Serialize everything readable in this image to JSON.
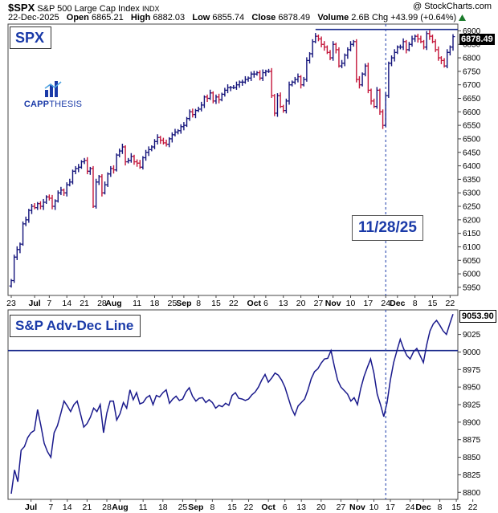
{
  "header": {
    "symbol": "$SPX",
    "name": "S&P 500 Large Cap Index",
    "exchange": "INDX",
    "date": "22-Dec-2025",
    "open_label": "Open",
    "open": "6865.21",
    "high_label": "High",
    "high": "6882.03",
    "low_label": "Low",
    "low": "6855.74",
    "close_label": "Close",
    "close": "6878.49",
    "volume_label": "Volume",
    "volume": "2.6B",
    "change": "Chg +43.99 (+0.64%)",
    "change_icon": "up-triangle-icon",
    "credit": "@ StockCharts.com"
  },
  "logo": {
    "text_bold": "CAPP",
    "text_thin": "THESIS",
    "icon": "bar-chart-logo-icon"
  },
  "colors": {
    "up": "#12127a",
    "down": "#c4163a",
    "line": "#1a1a8c",
    "accent": "#1a3aa8"
  },
  "chart_data": [
    {
      "type": "ohlc",
      "title": "SPX",
      "annotation": "11/28/25",
      "last_value": "6878.49",
      "y_ticks": [
        5950,
        6000,
        6050,
        6100,
        6150,
        6200,
        6250,
        6300,
        6350,
        6400,
        6450,
        6500,
        6550,
        6600,
        6650,
        6700,
        6750,
        6800,
        6850,
        6900
      ],
      "ylim": [
        5920,
        6925
      ],
      "horizontal_line": 6905,
      "vertical_marker_index": 128,
      "closes": [
        5975,
        6062,
        6090,
        6110,
        6185,
        6200,
        6235,
        6250,
        6245,
        6260,
        6250,
        6265,
        6285,
        6280,
        6250,
        6270,
        6300,
        6310,
        6300,
        6330,
        6340,
        6380,
        6390,
        6395,
        6415,
        6420,
        6380,
        6390,
        6250,
        6340,
        6360,
        6300,
        6330,
        6370,
        6390,
        6385,
        6440,
        6455,
        6470,
        6415,
        6420,
        6435,
        6415,
        6410,
        6395,
        6430,
        6450,
        6460,
        6470,
        6490,
        6505,
        6495,
        6485,
        6480,
        6500,
        6515,
        6525,
        6530,
        6545,
        6550,
        6575,
        6600,
        6590,
        6605,
        6610,
        6625,
        6655,
        6650,
        6670,
        6640,
        6655,
        6645,
        6665,
        6680,
        6690,
        6690,
        6690,
        6700,
        6710,
        6710,
        6720,
        6725,
        6740,
        6740,
        6745,
        6725,
        6745,
        6750,
        6750,
        6660,
        6595,
        6660,
        6620,
        6605,
        6640,
        6700,
        6710,
        6720,
        6730,
        6700,
        6720,
        6790,
        6815,
        6860,
        6880,
        6870,
        6850,
        6840,
        6820,
        6800,
        6850,
        6830,
        6770,
        6780,
        6810,
        6830,
        6850,
        6860,
        6720,
        6700,
        6740,
        6770,
        6680,
        6640,
        6620,
        6680,
        6600,
        6550,
        6660,
        6780,
        6800,
        6820,
        6840,
        6840,
        6860,
        6830,
        6850,
        6870,
        6880,
        6870,
        6860,
        6840,
        6890,
        6880,
        6860,
        6830,
        6800,
        6790,
        6770,
        6820,
        6840,
        6878.49
      ],
      "x_ticks": [
        {
          "label": "23",
          "index": 0,
          "bold": false
        },
        {
          "label": "Jul",
          "index": 8,
          "bold": true
        },
        {
          "label": "7",
          "index": 13,
          "bold": false
        },
        {
          "label": "14",
          "index": 19,
          "bold": false
        },
        {
          "label": "21",
          "index": 25,
          "bold": false
        },
        {
          "label": "28",
          "index": 31,
          "bold": false
        },
        {
          "label": "Aug",
          "index": 35,
          "bold": true
        },
        {
          "label": "11",
          "index": 43,
          "bold": false
        },
        {
          "label": "18",
          "index": 49,
          "bold": false
        },
        {
          "label": "25",
          "index": 55,
          "bold": false
        },
        {
          "label": "Sep",
          "index": 59,
          "bold": true
        },
        {
          "label": "8",
          "index": 64,
          "bold": false
        },
        {
          "label": "15",
          "index": 70,
          "bold": false
        },
        {
          "label": "22",
          "index": 76,
          "bold": false
        },
        {
          "label": "Oct",
          "index": 83,
          "bold": true
        },
        {
          "label": "6",
          "index": 87,
          "bold": false
        },
        {
          "label": "13",
          "index": 93,
          "bold": false
        },
        {
          "label": "20",
          "index": 99,
          "bold": false
        },
        {
          "label": "27",
          "index": 105,
          "bold": false
        },
        {
          "label": "Nov",
          "index": 110,
          "bold": true
        },
        {
          "label": "10",
          "index": 116,
          "bold": false
        },
        {
          "label": "17",
          "index": 122,
          "bold": false
        },
        {
          "label": "24",
          "index": 128,
          "bold": false
        },
        {
          "label": "Dec",
          "index": 132,
          "bold": true
        },
        {
          "label": "8",
          "index": 138,
          "bold": false
        },
        {
          "label": "15",
          "index": 144,
          "bold": false
        },
        {
          "label": "22",
          "index": 150,
          "bold": false
        }
      ]
    },
    {
      "type": "line",
      "title": "S&P Adv-Dec Line",
      "last_value": "9053.90",
      "y_ticks": [
        8800,
        8825,
        8850,
        8875,
        8900,
        8925,
        8950,
        8975,
        9000,
        9025
      ],
      "ylim": [
        8790,
        9060
      ],
      "horizontal_line": 9002,
      "values": [
        8798,
        8832,
        8815,
        8860,
        8865,
        8878,
        8885,
        8888,
        8918,
        8895,
        8870,
        8858,
        8850,
        8885,
        8895,
        8912,
        8930,
        8923,
        8915,
        8925,
        8930,
        8912,
        8893,
        8898,
        8907,
        8920,
        8915,
        8925,
        8885,
        8913,
        8930,
        8930,
        8903,
        8912,
        8928,
        8920,
        8946,
        8932,
        8942,
        8926,
        8928,
        8935,
        8938,
        8925,
        8938,
        8936,
        8942,
        8946,
        8927,
        8933,
        8937,
        8931,
        8933,
        8943,
        8949,
        8937,
        8930,
        8934,
        8935,
        8928,
        8932,
        8928,
        8920,
        8924,
        8922,
        8927,
        8924,
        8938,
        8942,
        8934,
        8933,
        8931,
        8933,
        8939,
        8943,
        8950,
        8960,
        8968,
        8957,
        8963,
        8970,
        8967,
        8960,
        8950,
        8935,
        8920,
        8910,
        8923,
        8928,
        8933,
        8946,
        8962,
        8972,
        8976,
        8984,
        8990,
        8991,
        9002,
        8980,
        8960,
        8950,
        8945,
        8940,
        8930,
        8935,
        8925,
        8948,
        8965,
        8978,
        8990,
        8970,
        8940,
        8925,
        8908,
        8928,
        8960,
        8985,
        9002,
        9018,
        9005,
        8995,
        8990,
        9000,
        9005,
        8995,
        8985,
        9010,
        9030,
        9040,
        9045,
        9038,
        9030,
        9025,
        9040,
        9053.9
      ],
      "x_ticks": [
        {
          "label": "Jul",
          "index": 6,
          "bold": true
        },
        {
          "label": "7",
          "index": 12,
          "bold": false
        },
        {
          "label": "14",
          "index": 17,
          "bold": false
        },
        {
          "label": "21",
          "index": 23,
          "bold": false
        },
        {
          "label": "28",
          "index": 29,
          "bold": false
        },
        {
          "label": "Aug",
          "index": 33,
          "bold": true
        },
        {
          "label": "11",
          "index": 40,
          "bold": false
        },
        {
          "label": "18",
          "index": 46,
          "bold": false
        },
        {
          "label": "25",
          "index": 52,
          "bold": false
        },
        {
          "label": "Sep",
          "index": 56,
          "bold": true
        },
        {
          "label": "8",
          "index": 61,
          "bold": false
        },
        {
          "label": "15",
          "index": 67,
          "bold": false
        },
        {
          "label": "22",
          "index": 72,
          "bold": false
        },
        {
          "label": "Oct",
          "index": 78,
          "bold": true
        },
        {
          "label": "6",
          "index": 83,
          "bold": false
        },
        {
          "label": "13",
          "index": 88,
          "bold": false
        },
        {
          "label": "20",
          "index": 94,
          "bold": false
        },
        {
          "label": "27",
          "index": 100,
          "bold": false
        },
        {
          "label": "Nov",
          "index": 105,
          "bold": true
        },
        {
          "label": "10",
          "index": 110,
          "bold": false
        },
        {
          "label": "17",
          "index": 115,
          "bold": false
        },
        {
          "label": "24",
          "index": 121,
          "bold": false
        },
        {
          "label": "Dec",
          "index": 125,
          "bold": true
        },
        {
          "label": "8",
          "index": 130,
          "bold": false
        },
        {
          "label": "15",
          "index": 135,
          "bold": false
        },
        {
          "label": "22",
          "index": 140,
          "bold": false
        }
      ]
    }
  ]
}
